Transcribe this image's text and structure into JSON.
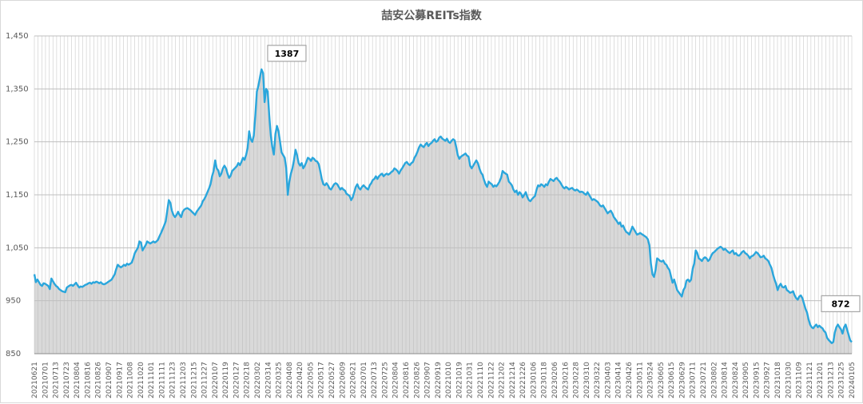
{
  "chart_data": {
    "type": "area",
    "title": "喆安公募REITs指数",
    "ylim": [
      850,
      1450
    ],
    "yticks": [
      850,
      950,
      1050,
      1150,
      1250,
      1350,
      1450
    ],
    "ytick_labels": [
      "850",
      "950",
      "1,050",
      "1,150",
      "1,250",
      "1,350",
      "1,450"
    ],
    "grid": "horizontal and vertical",
    "legend": "none",
    "colors": {
      "line": "#2aa6dc",
      "fill": "#d9d9d9",
      "grid": "#bfbfbf",
      "annotation_border": "#a6a6a6"
    },
    "xtick_labels": [
      "20210621",
      "20210701",
      "20210713",
      "20210723",
      "20210804",
      "20210816",
      "20210826",
      "20210907",
      "20210917",
      "20211008",
      "20211020",
      "20211101",
      "20211111",
      "20211123",
      "20211203",
      "20211215",
      "20211227",
      "20220107",
      "20220119",
      "20220127",
      "20220218",
      "20220302",
      "20220314",
      "20220325",
      "20220408",
      "20220420",
      "20220505",
      "20220517",
      "20220527",
      "20220609",
      "20220621",
      "20220701",
      "20220713",
      "20220725",
      "20220804",
      "20220816",
      "20220826",
      "20220907",
      "20220919",
      "20221010",
      "20221019",
      "20221031",
      "20221110",
      "20221122",
      "20221202",
      "20221214",
      "20221226",
      "20230106",
      "20230118",
      "20230206",
      "20230216",
      "20230228",
      "20230310",
      "20230322",
      "20230403",
      "20230414",
      "20230426",
      "20230511",
      "20230524",
      "20230605",
      "20230615",
      "20230629",
      "20230711",
      "20230721",
      "20230802",
      "20230814",
      "20230824",
      "20230905",
      "20230915",
      "20230927",
      "20231018",
      "20231030",
      "20231109",
      "20231121",
      "20231201",
      "20231213",
      "20231225",
      "20240105"
    ],
    "series": [
      {
        "values": [
          1000,
          985,
          990,
          985,
          980,
          978,
          983,
          982,
          980,
          978,
          972,
          992,
          987,
          982,
          978,
          976,
          972,
          970,
          968,
          967,
          966,
          975,
          977,
          979,
          980,
          978,
          981,
          984,
          979,
          975,
          977,
          976,
          978,
          980,
          981,
          983,
          984,
          982,
          985,
          984,
          986,
          985,
          983,
          985,
          982,
          981,
          982,
          984,
          986,
          988,
          990,
          995,
          1000,
          1010,
          1018,
          1015,
          1013,
          1015,
          1018,
          1016,
          1020,
          1018,
          1020,
          1022,
          1030,
          1040,
          1045,
          1050,
          1062,
          1060,
          1045,
          1050,
          1055,
          1062,
          1060,
          1058,
          1060,
          1062,
          1060,
          1062,
          1065,
          1072,
          1078,
          1085,
          1092,
          1100,
          1120,
          1140,
          1135,
          1120,
          1112,
          1108,
          1112,
          1118,
          1112,
          1108,
          1118,
          1122,
          1124,
          1125,
          1123,
          1121,
          1118,
          1115,
          1112,
          1118,
          1122,
          1126,
          1130,
          1138,
          1142,
          1148,
          1155,
          1162,
          1170,
          1185,
          1195,
          1215,
          1200,
          1196,
          1185,
          1190,
          1200,
          1205,
          1200,
          1190,
          1182,
          1186,
          1195,
          1198,
          1201,
          1204,
          1210,
          1206,
          1212,
          1220,
          1216,
          1225,
          1238,
          1270,
          1255,
          1250,
          1262,
          1300,
          1345,
          1356,
          1372,
          1387,
          1380,
          1325,
          1350,
          1345,
          1300,
          1262,
          1240,
          1226,
          1265,
          1280,
          1270,
          1250,
          1230,
          1225,
          1220,
          1200,
          1150,
          1175,
          1190,
          1200,
          1215,
          1235,
          1225,
          1210,
          1205,
          1210,
          1200,
          1205,
          1212,
          1220,
          1218,
          1214,
          1220,
          1218,
          1214,
          1213,
          1208,
          1195,
          1180,
          1170,
          1168,
          1172,
          1168,
          1162,
          1160,
          1165,
          1170,
          1172,
          1170,
          1165,
          1160,
          1163,
          1160,
          1158,
          1152,
          1150,
          1148,
          1140,
          1145,
          1155,
          1165,
          1170,
          1163,
          1160,
          1165,
          1168,
          1165,
          1162,
          1160,
          1168,
          1172,
          1178,
          1180,
          1185,
          1180,
          1185,
          1188,
          1190,
          1185,
          1188,
          1190,
          1188,
          1190,
          1193,
          1195,
          1200,
          1198,
          1195,
          1190,
          1196,
          1200,
          1205,
          1210,
          1212,
          1208,
          1206,
          1210,
          1212,
          1220,
          1225,
          1232,
          1240,
          1245,
          1242,
          1240,
          1245,
          1248,
          1242,
          1246,
          1248,
          1252,
          1255,
          1250,
          1252,
          1258,
          1260,
          1256,
          1254,
          1252,
          1256,
          1250,
          1248,
          1252,
          1255,
          1253,
          1240,
          1225,
          1218,
          1222,
          1224,
          1226,
          1228,
          1224,
          1222,
          1205,
          1200,
          1205,
          1210,
          1215,
          1210,
          1200,
          1192,
          1188,
          1178,
          1170,
          1165,
          1175,
          1172,
          1170,
          1165,
          1168,
          1166,
          1170,
          1175,
          1182,
          1195,
          1192,
          1190,
          1188,
          1175,
          1172,
          1168,
          1160,
          1155,
          1158,
          1150,
          1155,
          1152,
          1145,
          1150,
          1155,
          1146,
          1140,
          1138,
          1142,
          1145,
          1148,
          1160,
          1168,
          1166,
          1170,
          1168,
          1165,
          1170,
          1168,
          1175,
          1180,
          1178,
          1176,
          1180,
          1182,
          1178,
          1175,
          1170,
          1165,
          1162,
          1165,
          1163,
          1160,
          1162,
          1163,
          1160,
          1158,
          1160,
          1158,
          1155,
          1156,
          1155,
          1152,
          1150,
          1155,
          1150,
          1145,
          1140,
          1142,
          1140,
          1138,
          1135,
          1130,
          1128,
          1130,
          1125,
          1120,
          1115,
          1118,
          1120,
          1115,
          1108,
          1104,
          1100,
          1095,
          1098,
          1090,
          1092,
          1085,
          1080,
          1078,
          1075,
          1082,
          1090,
          1085,
          1080,
          1075,
          1076,
          1078,
          1076,
          1074,
          1072,
          1070,
          1066,
          1055,
          1020,
          1000,
          995,
          1008,
          1030,
          1028,
          1025,
          1024,
          1026,
          1020,
          1018,
          1012,
          1008,
          996,
          984,
          990,
          980,
          970,
          966,
          962,
          958,
          970,
          975,
          988,
          990,
          986,
          990,
          1010,
          1020,
          1045,
          1040,
          1030,
          1028,
          1025,
          1030,
          1032,
          1030,
          1025,
          1028,
          1035,
          1040,
          1042,
          1045,
          1048,
          1050,
          1052,
          1050,
          1046,
          1048,
          1045,
          1042,
          1040,
          1043,
          1045,
          1038,
          1040,
          1036,
          1035,
          1038,
          1042,
          1044,
          1040,
          1038,
          1035,
          1030,
          1034,
          1035,
          1038,
          1042,
          1040,
          1036,
          1032,
          1033,
          1035,
          1030,
          1028,
          1025,
          1018,
          1012,
          1000,
          990,
          982,
          970,
          978,
          982,
          976,
          975,
          978,
          970,
          968,
          965,
          966,
          968,
          960,
          955,
          952,
          958,
          960,
          955,
          945,
          935,
          928,
          915,
          905,
          900,
          898,
          902,
          905,
          900,
          903,
          900,
          898,
          893,
          890,
          880,
          876,
          873,
          870,
          872,
          890,
          900,
          905,
          900,
          896,
          888,
          900,
          905,
          895,
          885,
          875,
          872
        ]
      }
    ],
    "annotations": [
      {
        "label": "1387",
        "x_index": 152,
        "value": 1387
      },
      {
        "label": "872",
        "x_index": 531,
        "value": 872
      }
    ]
  }
}
